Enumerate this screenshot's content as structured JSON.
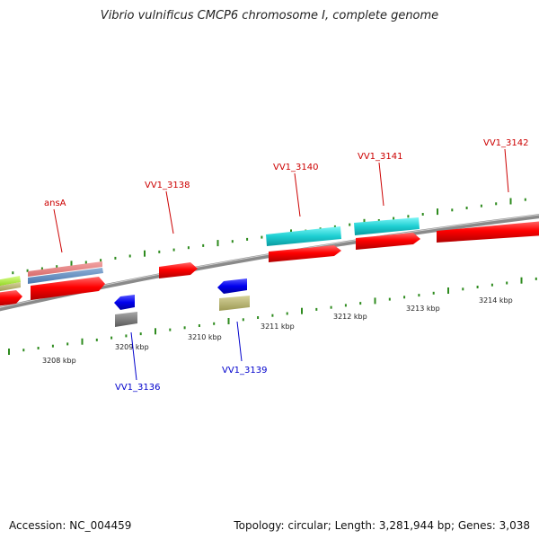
{
  "title": "Vibrio vulnificus CMCP6 chromosome I, complete genome",
  "footer": {
    "accession": "Accession: NC_004459",
    "summary": "Topology: circular; Length: 3,281,944 bp; Genes: 3,038"
  },
  "colors": {
    "forward_label": "#cc0000",
    "reverse_label": "#0000cc",
    "backbone": "#8a8a8a",
    "tick": "#2e8b1e"
  },
  "scale_labels": [
    "3208 kbp",
    "3209 kbp",
    "3210 kbp",
    "3211 kbp",
    "3212 kbp",
    "3213 kbp",
    "3214 kbp"
  ],
  "forward_genes": [
    {
      "label": "ansA"
    },
    {
      "label": "VV1_3138"
    },
    {
      "label": "VV1_3140"
    },
    {
      "label": "VV1_3141"
    },
    {
      "label": "VV1_3142"
    }
  ],
  "reverse_genes": [
    {
      "label": "VV1_3136"
    },
    {
      "label": "VV1_3139"
    }
  ]
}
